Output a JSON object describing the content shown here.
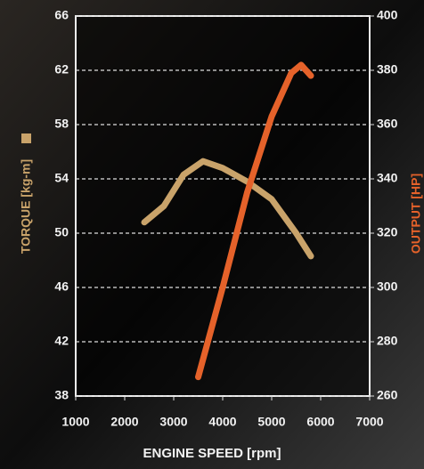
{
  "chart_data": {
    "type": "line",
    "xlabel": "ENGINE SPEED [rpm]",
    "ylabel": "TORQUE [kg-m]",
    "y2label": "OUTPUT [HP]",
    "xlim": [
      1000,
      7000
    ],
    "xticks": [
      1000,
      2000,
      3000,
      4000,
      5000,
      6000,
      7000
    ],
    "ylim": [
      38,
      66
    ],
    "yticks": [
      38,
      42,
      46,
      50,
      54,
      58,
      62,
      66
    ],
    "y2lim": [
      260,
      400
    ],
    "y2ticks": [
      260,
      280,
      300,
      320,
      340,
      360,
      380,
      400
    ],
    "grid": true,
    "series": [
      {
        "name": "TORQUE",
        "color": "#c9a36a",
        "axis": "y",
        "x": [
          2400,
          2800,
          3200,
          3600,
          4000,
          4500,
          5000,
          5500,
          5800
        ],
        "values": [
          50.8,
          52,
          54.3,
          55.3,
          54.8,
          53.8,
          52.5,
          50,
          48.3
        ]
      },
      {
        "name": "OUTPUT",
        "color": "#e5622a",
        "axis": "y2",
        "x": [
          3500,
          4000,
          4500,
          5000,
          5400,
          5600,
          5800
        ],
        "values": [
          267,
          300,
          335,
          363,
          379,
          382,
          378
        ]
      }
    ]
  }
}
